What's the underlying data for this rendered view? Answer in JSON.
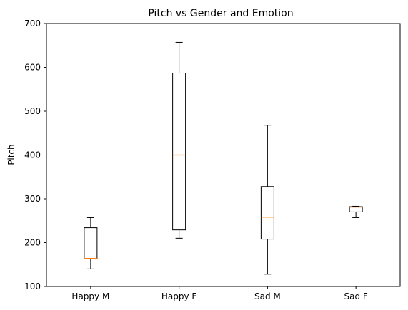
{
  "chart_data": {
    "type": "box",
    "title": "Pitch vs Gender and Emotion",
    "xlabel": "",
    "ylabel": "Pitch",
    "ylim": [
      100,
      700
    ],
    "yticks": [
      100,
      200,
      300,
      400,
      500,
      600,
      700
    ],
    "grid": false,
    "categories": [
      "Happy M",
      "Happy F",
      "Sad M",
      "Sad F"
    ],
    "boxes": [
      {
        "label": "Happy M",
        "whisker_low": 140,
        "q1": 164,
        "median": 164,
        "q3": 234,
        "whisker_high": 257
      },
      {
        "label": "Happy F",
        "whisker_low": 210,
        "q1": 229,
        "median": 400,
        "q3": 587,
        "whisker_high": 657
      },
      {
        "label": "Sad M",
        "whisker_low": 128,
        "q1": 208,
        "median": 258,
        "q3": 328,
        "whisker_high": 468
      },
      {
        "label": "Sad F",
        "whisker_low": 257,
        "q1": 270,
        "median": 281,
        "q3": 282,
        "whisker_high": 283
      }
    ],
    "colors": {
      "box": "#000000",
      "median": "#ff7f0e"
    }
  }
}
